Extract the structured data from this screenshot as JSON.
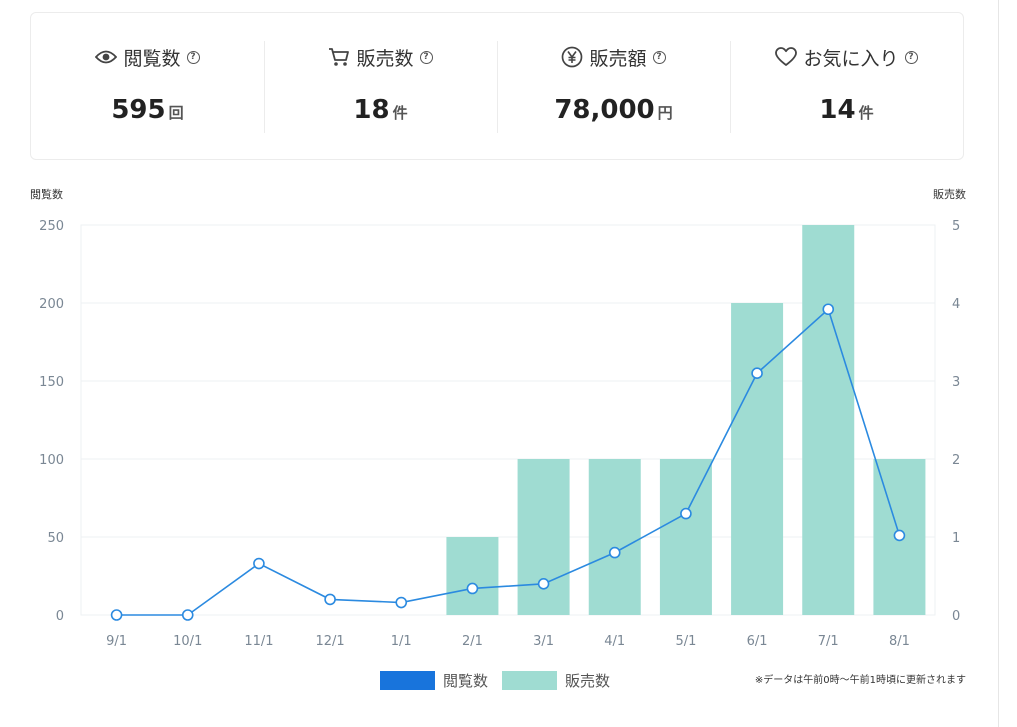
{
  "stats": [
    {
      "icon": "eye-icon",
      "label": "閲覧数",
      "value": "595",
      "unit": "回"
    },
    {
      "icon": "cart-icon",
      "label": "販売数",
      "value": "18",
      "unit": "件"
    },
    {
      "icon": "yen-icon",
      "label": "販売額",
      "value": "78,000",
      "unit": "円"
    },
    {
      "icon": "heart-icon",
      "label": "お気に入り",
      "value": "14",
      "unit": "件"
    }
  ],
  "help_glyph": "?",
  "colors": {
    "line": "#2b8ae0",
    "bar": "#9fdcd2",
    "legend_line": "#1874dc"
  },
  "chart_data": {
    "type": "bar",
    "categories": [
      "9/1",
      "10/1",
      "11/1",
      "12/1",
      "1/1",
      "2/1",
      "3/1",
      "4/1",
      "5/1",
      "6/1",
      "7/1",
      "8/1"
    ],
    "series": [
      {
        "name": "閲覧数",
        "type": "line",
        "axis": "left",
        "values": [
          0,
          0,
          33,
          10,
          8,
          17,
          20,
          40,
          65,
          155,
          196,
          51
        ]
      },
      {
        "name": "販売数",
        "type": "bar",
        "axis": "right",
        "values": [
          0,
          0,
          0,
          0,
          0,
          1,
          2,
          2,
          2,
          4,
          5,
          2
        ]
      }
    ],
    "ylabel": "閲覧数",
    "y2label": "販売数",
    "ylim": [
      0,
      250
    ],
    "y2lim": [
      0,
      5
    ],
    "yticks": [
      0,
      50,
      100,
      150,
      200,
      250
    ],
    "y2ticks": [
      0,
      1,
      2,
      3,
      4,
      5
    ],
    "grid": true,
    "legend": "bottom"
  },
  "footnote": "※データは午前0時〜午前1時頃に更新されます"
}
